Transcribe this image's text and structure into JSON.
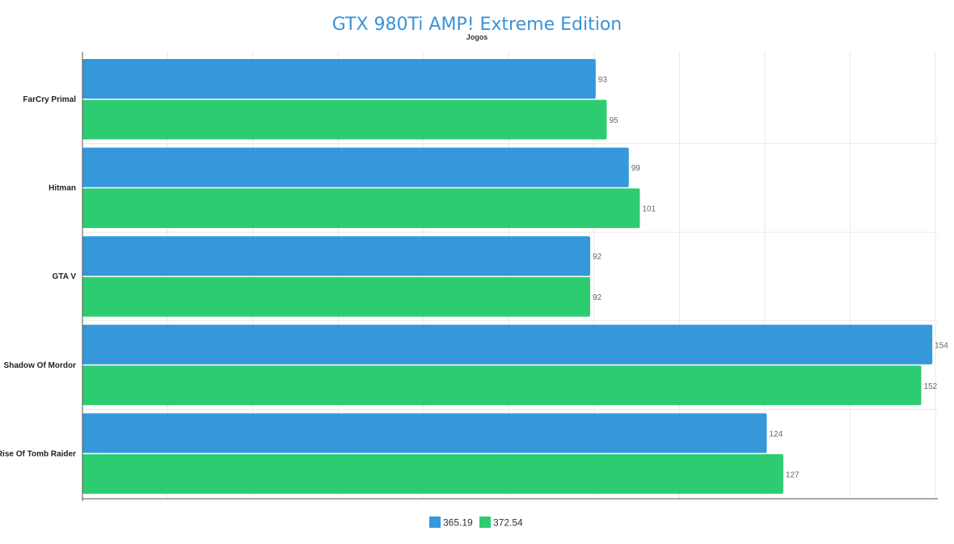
{
  "chart_data": {
    "type": "bar",
    "orientation": "horizontal",
    "title": "GTX 980Ti AMP! Extreme Edition",
    "xlabel": "",
    "ylabel": "Jogos",
    "categories": [
      "FarCry Primal",
      "Hitman",
      "GTA V",
      "Shadow Of Mordor",
      "Rise Of Tomb Raider"
    ],
    "series": [
      {
        "name": "365.19",
        "color": "#3498db",
        "values": [
          93,
          99,
          92,
          154,
          124
        ]
      },
      {
        "name": "372.54",
        "color": "#2ecc71",
        "values": [
          95,
          101,
          92,
          152,
          127
        ]
      }
    ],
    "xlim": [
      0,
      155
    ],
    "grid": true,
    "legend_position": "bottom-center"
  },
  "colors": {
    "title": "#3a93d8",
    "grid": "#eaeaea",
    "axis": "#555555"
  }
}
